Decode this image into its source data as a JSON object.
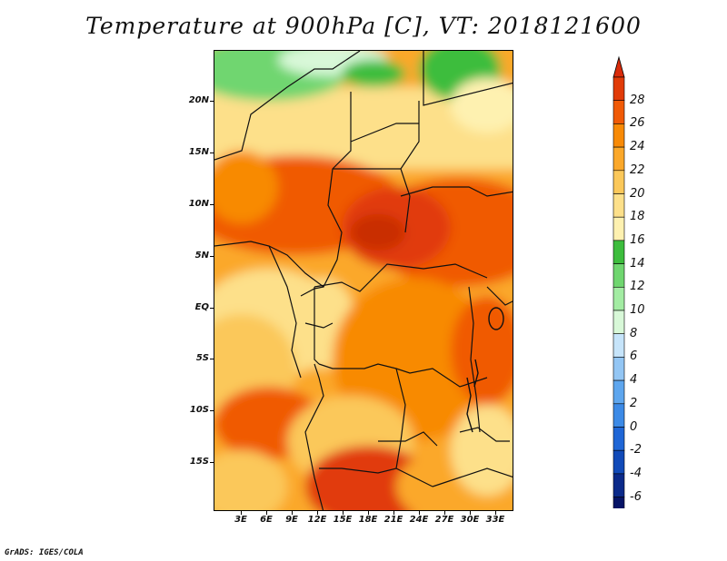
{
  "title": "Temperature at 900hPa [C], VT: 2018121600",
  "credit": "GrADS: IGES/COLA",
  "map": {
    "lat_labels": [
      "20N",
      "15N",
      "10N",
      "5N",
      "EQ",
      "5S",
      "10S",
      "15S"
    ],
    "lon_labels": [
      "3E",
      "6E",
      "9E",
      "12E",
      "15E",
      "18E",
      "21E",
      "24E",
      "27E",
      "30E",
      "33E"
    ]
  },
  "colorbar": {
    "labels": [
      "28",
      "26",
      "24",
      "22",
      "20",
      "18",
      "16",
      "14",
      "12",
      "10",
      "8",
      "6",
      "4",
      "2",
      "0",
      "-2",
      "-4",
      "-6"
    ],
    "colors": [
      "#e13b08",
      "#f05a06",
      "#f88a06",
      "#fba82a",
      "#fbc85a",
      "#fde08a",
      "#fef1b0",
      "#3dbd3d",
      "#6fd66f",
      "#a3eca3",
      "#d8f8d8",
      "#c6e4fa",
      "#93c6f4",
      "#5ea6ee",
      "#3c8ae6",
      "#1f66d6",
      "#114ab8",
      "#0b2a8a",
      "#061466"
    ],
    "top_triangle_color": "#d92b0a",
    "bottom_triangle_color": "#dde3f7"
  }
}
